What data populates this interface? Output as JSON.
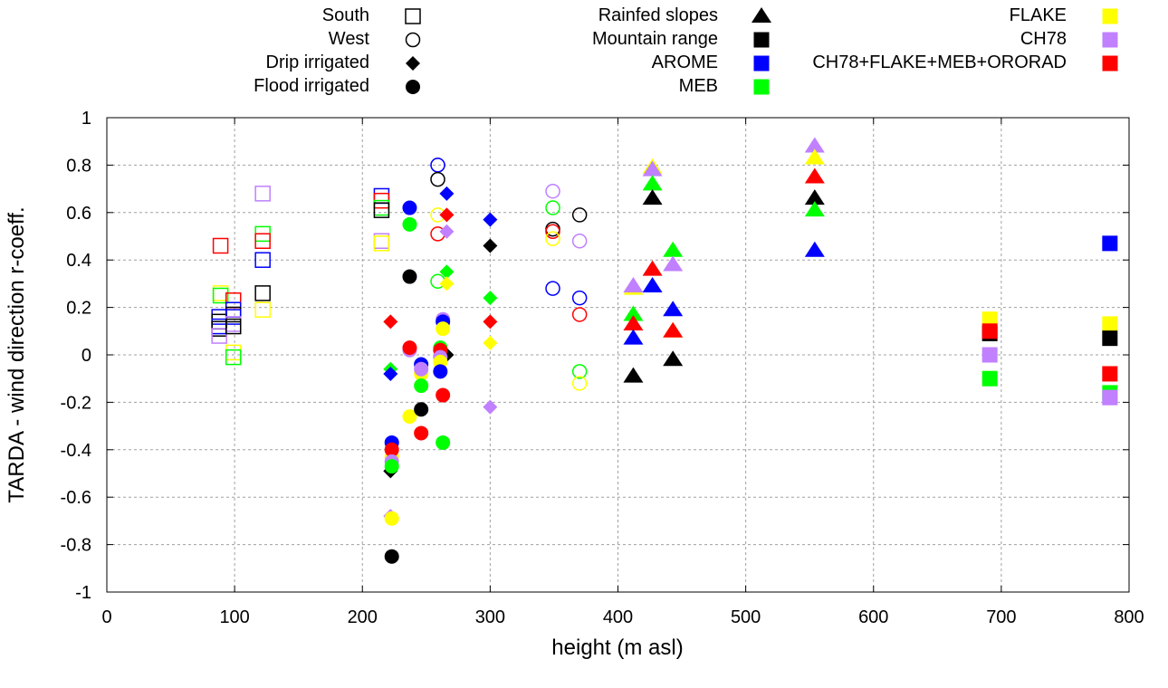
{
  "chart_data": {
    "type": "scatter",
    "title": "",
    "xlabel": "height (m asl)",
    "ylabel": "TARDA - wind direction r-coeff.",
    "xlim": [
      0,
      800
    ],
    "ylim": [
      -1,
      1
    ],
    "xticks": [
      "0",
      "100",
      "200",
      "300",
      "400",
      "500",
      "600",
      "700",
      "800"
    ],
    "xtick_values": [
      0,
      100,
      200,
      300,
      400,
      500,
      600,
      700,
      800
    ],
    "yticks": [
      "1",
      "0.8",
      "0.6",
      "0.4",
      "0.2",
      "0",
      "-0.2",
      "-0.4",
      "-0.6",
      "-0.8",
      "-1"
    ],
    "ytick_values": [
      1,
      0.8,
      0.6,
      0.4,
      0.2,
      0,
      -0.2,
      -0.4,
      -0.6,
      -0.8,
      -1
    ],
    "grid": true,
    "legend_placement": "top",
    "legend_shapes": [
      {
        "label": "South",
        "shape": "open-square"
      },
      {
        "label": "West",
        "shape": "open-circle"
      },
      {
        "label": "Drip irrigated",
        "shape": "diamond"
      },
      {
        "label": "Flood irrigated",
        "shape": "circle"
      },
      {
        "label": "Rainfed slopes",
        "shape": "triangle"
      },
      {
        "label": "Mountain range",
        "shape": "square"
      }
    ],
    "legend_models": [
      {
        "label": "AROME",
        "color": "#0000ff"
      },
      {
        "label": "MEB",
        "color": "#00ff00"
      },
      {
        "label": "FLAKE",
        "color": "#ffff00"
      },
      {
        "label": "CH78",
        "color": "#c080ff"
      },
      {
        "label": "CH78+FLAKE+MEB+ORORAD",
        "color": "#ff0000"
      }
    ],
    "series": [
      {
        "name": "South",
        "shape": "open-square",
        "points": [
          {
            "model": "CH78+FLAKE+MEB+ORORAD",
            "x": 89,
            "y": 0.46
          },
          {
            "model": "FLAKE",
            "x": 89,
            "y": 0.26
          },
          {
            "model": "MEB",
            "x": 89,
            "y": 0.25
          },
          {
            "model": "AROME",
            "x": 88,
            "y": 0.16
          },
          {
            "model": "Mountain range",
            "x": 88,
            "y": 0.14
          },
          {
            "model": "AROME",
            "x": 88,
            "y": 0.12
          },
          {
            "model": "Mountain range",
            "x": 88,
            "y": 0.11
          },
          {
            "model": "CH78",
            "x": 88,
            "y": 0.08
          },
          {
            "model": "CH78+FLAKE+MEB+ORORAD",
            "x": 99,
            "y": 0.23
          },
          {
            "model": "AROME",
            "x": 99,
            "y": 0.19
          },
          {
            "model": "Mountain range",
            "x": 99,
            "y": 0.17
          },
          {
            "model": "AROME",
            "x": 99,
            "y": 0.16
          },
          {
            "model": "CH78",
            "x": 99,
            "y": 0.13
          },
          {
            "model": "Mountain range",
            "x": 99,
            "y": 0.12
          },
          {
            "model": "FLAKE",
            "x": 99,
            "y": 0.01
          },
          {
            "model": "MEB",
            "x": 99,
            "y": -0.01
          },
          {
            "model": "CH78",
            "x": 122,
            "y": 0.68
          },
          {
            "model": "MEB",
            "x": 122,
            "y": 0.51
          },
          {
            "model": "CH78+FLAKE+MEB+ORORAD",
            "x": 122,
            "y": 0.48
          },
          {
            "model": "AROME",
            "x": 122,
            "y": 0.4
          },
          {
            "model": "Mountain range",
            "x": 122,
            "y": 0.26
          },
          {
            "model": "FLAKE",
            "x": 122,
            "y": 0.19
          },
          {
            "model": "AROME",
            "x": 215,
            "y": 0.67
          },
          {
            "model": "CH78+FLAKE+MEB+ORORAD",
            "x": 215,
            "y": 0.65
          },
          {
            "model": "MEB",
            "x": 215,
            "y": 0.62
          },
          {
            "model": "Mountain range",
            "x": 215,
            "y": 0.61
          },
          {
            "model": "CH78",
            "x": 215,
            "y": 0.48
          },
          {
            "model": "FLAKE",
            "x": 215,
            "y": 0.47
          }
        ]
      },
      {
        "name": "West",
        "shape": "open-circle",
        "points": [
          {
            "model": "CH78",
            "x": 259,
            "y": 0.8
          },
          {
            "model": "AROME",
            "x": 259,
            "y": 0.8
          },
          {
            "model": "Mountain range",
            "x": 259,
            "y": 0.74
          },
          {
            "model": "FLAKE",
            "x": 259,
            "y": 0.59
          },
          {
            "model": "CH78+FLAKE+MEB+ORORAD",
            "x": 259,
            "y": 0.51
          },
          {
            "model": "MEB",
            "x": 259,
            "y": 0.31
          },
          {
            "model": "CH78",
            "x": 349,
            "y": 0.69
          },
          {
            "model": "MEB",
            "x": 349,
            "y": 0.62
          },
          {
            "model": "Mountain range",
            "x": 349,
            "y": 0.53
          },
          {
            "model": "CH78+FLAKE+MEB+ORORAD",
            "x": 349,
            "y": 0.52
          },
          {
            "model": "FLAKE",
            "x": 349,
            "y": 0.49
          },
          {
            "model": "AROME",
            "x": 349,
            "y": 0.28
          },
          {
            "model": "Mountain range",
            "x": 370,
            "y": 0.59
          },
          {
            "model": "CH78",
            "x": 370,
            "y": 0.48
          },
          {
            "model": "AROME",
            "x": 370,
            "y": 0.24
          },
          {
            "model": "CH78+FLAKE+MEB+ORORAD",
            "x": 370,
            "y": 0.17
          },
          {
            "model": "MEB",
            "x": 370,
            "y": -0.07
          },
          {
            "model": "FLAKE",
            "x": 370,
            "y": -0.12
          }
        ]
      },
      {
        "name": "Drip irrigated",
        "shape": "diamond",
        "points": [
          {
            "model": "CH78+FLAKE+MEB+ORORAD",
            "x": 222,
            "y": 0.14
          },
          {
            "model": "MEB",
            "x": 222,
            "y": -0.06
          },
          {
            "model": "AROME",
            "x": 222,
            "y": -0.08
          },
          {
            "model": "Mountain range",
            "x": 222,
            "y": -0.49
          },
          {
            "model": "CH78",
            "x": 222,
            "y": -0.68
          },
          {
            "model": "AROME",
            "x": 266,
            "y": 0.68
          },
          {
            "model": "CH78+FLAKE+MEB+ORORAD",
            "x": 266,
            "y": 0.59
          },
          {
            "model": "CH78",
            "x": 266,
            "y": 0.52
          },
          {
            "model": "MEB",
            "x": 266,
            "y": 0.35
          },
          {
            "model": "FLAKE",
            "x": 266,
            "y": 0.3
          },
          {
            "model": "Mountain range",
            "x": 266,
            "y": 0.0
          },
          {
            "model": "AROME",
            "x": 300,
            "y": 0.57
          },
          {
            "model": "Mountain range",
            "x": 300,
            "y": 0.46
          },
          {
            "model": "MEB",
            "x": 300,
            "y": 0.24
          },
          {
            "model": "CH78+FLAKE+MEB+ORORAD",
            "x": 300,
            "y": 0.14
          },
          {
            "model": "FLAKE",
            "x": 300,
            "y": 0.05
          },
          {
            "model": "CH78",
            "x": 300,
            "y": -0.22
          }
        ]
      },
      {
        "name": "Flood irrigated",
        "shape": "circle",
        "points": [
          {
            "model": "AROME",
            "x": 223,
            "y": -0.37
          },
          {
            "model": "FLAKE",
            "x": 223,
            "y": -0.43
          },
          {
            "model": "CH78+FLAKE+MEB+ORORAD",
            "x": 223,
            "y": -0.4
          },
          {
            "model": "CH78",
            "x": 223,
            "y": -0.45
          },
          {
            "model": "MEB",
            "x": 223,
            "y": -0.47
          },
          {
            "model": "FLAKE",
            "x": 223,
            "y": -0.69
          },
          {
            "model": "Mountain range",
            "x": 223,
            "y": -0.85
          },
          {
            "model": "AROME",
            "x": 237,
            "y": 0.62
          },
          {
            "model": "MEB",
            "x": 237,
            "y": 0.55
          },
          {
            "model": "Mountain range",
            "x": 237,
            "y": 0.33
          },
          {
            "model": "CH78",
            "x": 237,
            "y": 0.02
          },
          {
            "model": "CH78+FLAKE+MEB+ORORAD",
            "x": 237,
            "y": 0.03
          },
          {
            "model": "FLAKE",
            "x": 237,
            "y": -0.26
          },
          {
            "model": "AROME",
            "x": 246,
            "y": -0.04
          },
          {
            "model": "FLAKE",
            "x": 246,
            "y": -0.08
          },
          {
            "model": "CH78",
            "x": 246,
            "y": -0.06
          },
          {
            "model": "MEB",
            "x": 246,
            "y": -0.13
          },
          {
            "model": "Mountain range",
            "x": 246,
            "y": -0.23
          },
          {
            "model": "CH78+FLAKE+MEB+ORORAD",
            "x": 246,
            "y": -0.33
          },
          {
            "model": "CH78",
            "x": 263,
            "y": 0.15
          },
          {
            "model": "AROME",
            "x": 263,
            "y": 0.14
          },
          {
            "model": "FLAKE",
            "x": 263,
            "y": 0.11
          },
          {
            "model": "MEB",
            "x": 261,
            "y": 0.03
          },
          {
            "model": "CH78+FLAKE+MEB+ORORAD",
            "x": 261,
            "y": 0.02
          },
          {
            "model": "CH78",
            "x": 261,
            "y": -0.01
          },
          {
            "model": "FLAKE",
            "x": 261,
            "y": -0.03
          },
          {
            "model": "AROME",
            "x": 261,
            "y": -0.07
          },
          {
            "model": "CH78+FLAKE+MEB+ORORAD",
            "x": 263,
            "y": -0.17
          },
          {
            "model": "MEB",
            "x": 263,
            "y": -0.37
          }
        ]
      },
      {
        "name": "Rainfed slopes",
        "shape": "triangle",
        "points": [
          {
            "model": "FLAKE",
            "x": 427,
            "y": 0.79
          },
          {
            "model": "CH78",
            "x": 427,
            "y": 0.78
          },
          {
            "model": "MEB",
            "x": 427,
            "y": 0.72
          },
          {
            "model": "Mountain range",
            "x": 427,
            "y": 0.66
          },
          {
            "model": "FLAKE",
            "x": 412,
            "y": 0.28
          },
          {
            "model": "CH78",
            "x": 412,
            "y": 0.29
          },
          {
            "model": "MEB",
            "x": 412,
            "y": 0.17
          },
          {
            "model": "CH78+FLAKE+MEB+ORORAD",
            "x": 412,
            "y": 0.13
          },
          {
            "model": "AROME",
            "x": 412,
            "y": 0.07
          },
          {
            "model": "Mountain range",
            "x": 412,
            "y": -0.09
          },
          {
            "model": "CH78+FLAKE+MEB+ORORAD",
            "x": 427,
            "y": 0.36
          },
          {
            "model": "AROME",
            "x": 427,
            "y": 0.29
          },
          {
            "model": "MEB",
            "x": 443,
            "y": 0.44
          },
          {
            "model": "CH78",
            "x": 443,
            "y": 0.38
          },
          {
            "model": "AROME",
            "x": 443,
            "y": 0.19
          },
          {
            "model": "FLAKE",
            "x": 443,
            "y": 0.1
          },
          {
            "model": "CH78+FLAKE+MEB+ORORAD",
            "x": 443,
            "y": 0.1
          },
          {
            "model": "Mountain range",
            "x": 443,
            "y": -0.02
          },
          {
            "model": "CH78",
            "x": 554,
            "y": 0.88
          },
          {
            "model": "FLAKE",
            "x": 554,
            "y": 0.83
          },
          {
            "model": "CH78+FLAKE+MEB+ORORAD",
            "x": 554,
            "y": 0.75
          },
          {
            "model": "Mountain range",
            "x": 554,
            "y": 0.66
          },
          {
            "model": "MEB",
            "x": 554,
            "y": 0.61
          },
          {
            "model": "AROME",
            "x": 554,
            "y": 0.44
          }
        ]
      },
      {
        "name": "Mountain range",
        "shape": "square",
        "points": [
          {
            "model": "FLAKE",
            "x": 691,
            "y": 0.15
          },
          {
            "model": "Mountain range",
            "x": 691,
            "y": 0.09
          },
          {
            "model": "CH78+FLAKE+MEB+ORORAD",
            "x": 691,
            "y": 0.1
          },
          {
            "model": "CH78",
            "x": 691,
            "y": 0.0
          },
          {
            "model": "MEB",
            "x": 691,
            "y": -0.1
          },
          {
            "model": "AROME",
            "x": 785,
            "y": 0.47
          },
          {
            "model": "FLAKE",
            "x": 785,
            "y": 0.13
          },
          {
            "model": "Mountain range",
            "x": 785,
            "y": 0.07
          },
          {
            "model": "CH78+FLAKE+MEB+ORORAD",
            "x": 785,
            "y": -0.08
          },
          {
            "model": "MEB",
            "x": 785,
            "y": -0.16
          },
          {
            "model": "CH78",
            "x": 785,
            "y": -0.18
          }
        ]
      }
    ]
  }
}
